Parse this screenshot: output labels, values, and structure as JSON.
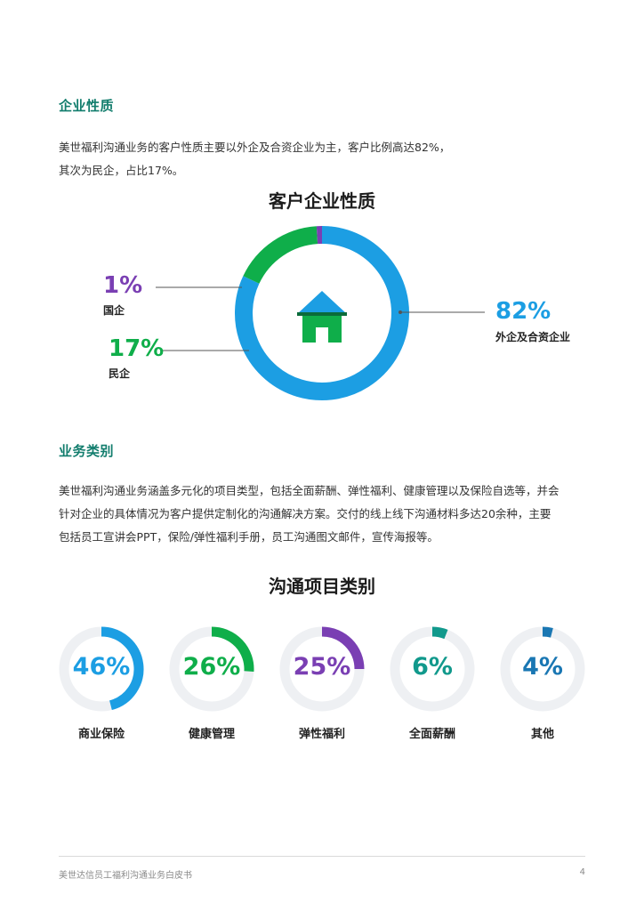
{
  "section1": {
    "title": "企业性质",
    "paragraph": [
      "美世福利沟通业务的客户性质主要以外企及合资企业为主，客户比例高达82%，",
      "其次为民企，占比17%。"
    ]
  },
  "chart1": {
    "title": "客户企业性质",
    "labels": {
      "soe_pct": "1%",
      "soe_name": "国企",
      "private_pct": "17%",
      "private_name": "民企",
      "foreign_pct": "82%",
      "foreign_name": "外企及合资企业"
    },
    "icon": "house-icon"
  },
  "section2": {
    "title": "业务类别",
    "paragraph": [
      "美世福利沟通业务涵盖多元化的项目类型，包括全面薪酬、弹性福利、健康管理以及保险自选等，并会",
      "针对企业的具体情况为客户提供定制化的沟通解决方案。交付的线上线下沟通材料多达20余种，主要",
      "包括员工宣讲会PPT，保险/弹性福利手册，员工沟通图文邮件，宣传海报等。"
    ]
  },
  "chart2": {
    "title": "沟通项目类别",
    "items": [
      {
        "pct": "46%",
        "label": "商业保险"
      },
      {
        "pct": "26%",
        "label": "健康管理"
      },
      {
        "pct": "25%",
        "label": "弹性福利"
      },
      {
        "pct": "6%",
        "label": "全面薪酬"
      },
      {
        "pct": "4%",
        "label": "其他"
      }
    ]
  },
  "chart_data": [
    {
      "type": "pie",
      "title": "客户企业性质",
      "categories": [
        "外企及合资企业",
        "民企",
        "国企"
      ],
      "values": [
        82,
        17,
        1
      ],
      "colors": [
        "#1c9ee3",
        "#0fae4a",
        "#7a3fb3"
      ]
    },
    {
      "type": "pie",
      "title": "沟通项目类别",
      "categories": [
        "商业保险",
        "健康管理",
        "弹性福利",
        "全面薪酬",
        "其他"
      ],
      "values": [
        46,
        26,
        25,
        6,
        4
      ],
      "colors": [
        "#1c9ee3",
        "#0fae4a",
        "#7a3fb3",
        "#11998c",
        "#1a77b3"
      ]
    }
  ],
  "colors": {
    "teal": "#127d6d",
    "blue": "#1c9ee3",
    "green": "#0fae4a",
    "purple": "#7a3fb3",
    "teal_ring": "#11998c",
    "dark_blue": "#1a77b3",
    "track": "#eef0f3"
  },
  "footer": {
    "text": "美世达信员工福利沟通业务白皮书",
    "page": "4"
  }
}
